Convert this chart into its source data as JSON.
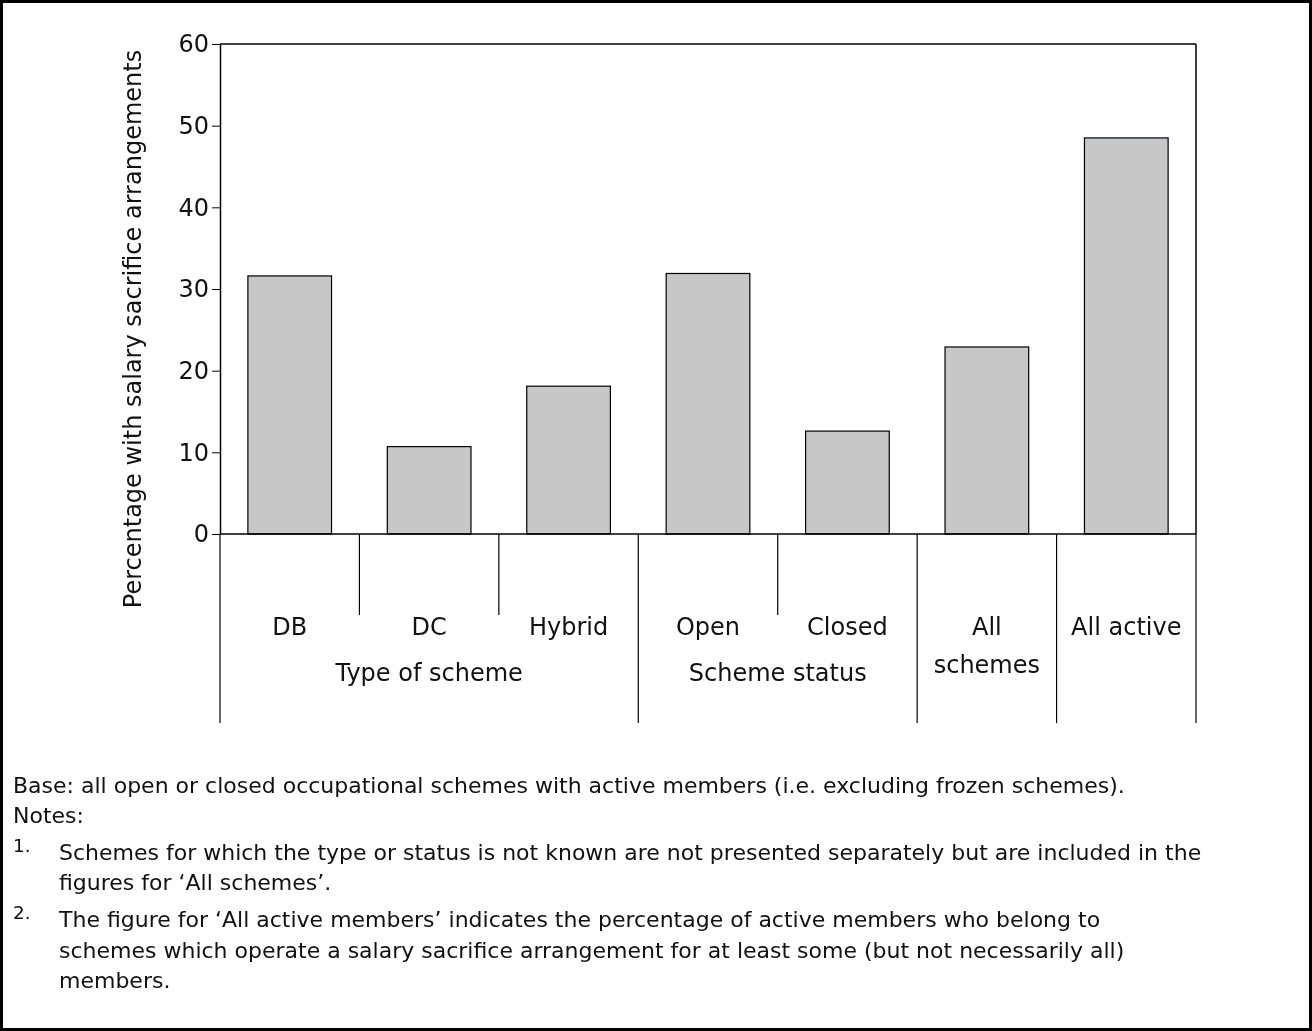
{
  "chart_data": {
    "type": "bar",
    "ylabel": "Percentage with salary sacrifice arrangements",
    "categories": [
      "DB",
      "DC",
      "Hybrid",
      "Open",
      "Closed",
      "All schemes",
      "All active"
    ],
    "values": [
      31.6,
      10.7,
      18.1,
      31.9,
      12.6,
      22.9,
      48.5
    ],
    "color": "#c6c7c9",
    "ylim": [
      0,
      60
    ],
    "yticks": [
      0,
      10,
      20,
      30,
      40,
      50,
      60
    ],
    "grid": false,
    "annotations": [
      "Type of scheme",
      "Scheme status",
      "Base: all open or closed occupational schemes with active members (i.e. excluding frozen schemes).",
      "Notes:",
      "$^{1.}$ Schemes for which the type or status is not known are not presented separately but are included in the figures for ‘All schemes’.",
      "$^{2.}$ The figure for ‘All active members’ indicates the percentage of active members who belong to schemes which operate a salary sacrifice arrangement for at least some (but not necessarily all) members."
    ]
  }
}
